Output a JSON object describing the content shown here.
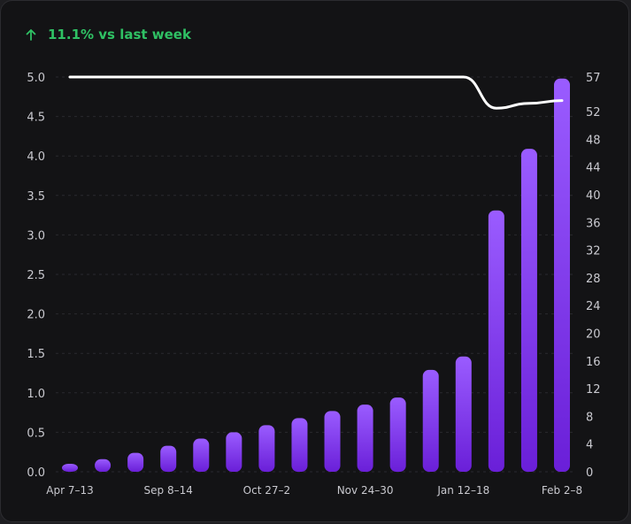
{
  "header": {
    "trend_text": "11.1% vs last week",
    "trend_direction": "up",
    "trend_icon": "arrow-up-icon",
    "trend_color": "#2fc164"
  },
  "chart_data": {
    "type": "bar",
    "categories": [
      "Apr 7–13",
      "",
      "",
      "Sep 8–14",
      "",
      "",
      "Oct 27–2",
      "",
      "",
      "Nov 24–30",
      "",
      "",
      "Jan 12–18",
      "",
      "",
      "Feb 2–8"
    ],
    "series": [
      {
        "type": "bar",
        "axis": "left",
        "values": [
          0.08,
          0.16,
          0.24,
          0.33,
          0.42,
          0.5,
          0.59,
          0.68,
          0.77,
          0.85,
          0.94,
          1.29,
          1.46,
          3.31,
          4.09,
          4.98
        ],
        "color_top": "#9a5cff",
        "color_bottom": "#6a1fd8"
      },
      {
        "type": "line",
        "axis": "right",
        "values": [
          57,
          57,
          57,
          57,
          57,
          57,
          57,
          57,
          57,
          57,
          57,
          57,
          57,
          52.5,
          53.2,
          53.6
        ],
        "color": "#ffffff"
      }
    ],
    "y_left": {
      "range": [
        0,
        5
      ],
      "ticks": [
        "0.0",
        "0.5",
        "1.0",
        "1.5",
        "2.0",
        "2.5",
        "3.0",
        "3.5",
        "4.0",
        "4.5",
        "5.0"
      ]
    },
    "y_right": {
      "range": [
        0,
        57
      ],
      "ticks": [
        "0",
        "4",
        "8",
        "12",
        "16",
        "20",
        "24",
        "28",
        "32",
        "36",
        "40",
        "44",
        "48",
        "52",
        "57"
      ]
    },
    "xticks": [
      "Apr 7–13",
      "Sep 8–14",
      "Oct 27–2",
      "Nov 24–30",
      "Jan 12–18",
      "Feb 2–8"
    ],
    "grid": true,
    "grid_color": "#2a2a2e",
    "legend": "none"
  }
}
